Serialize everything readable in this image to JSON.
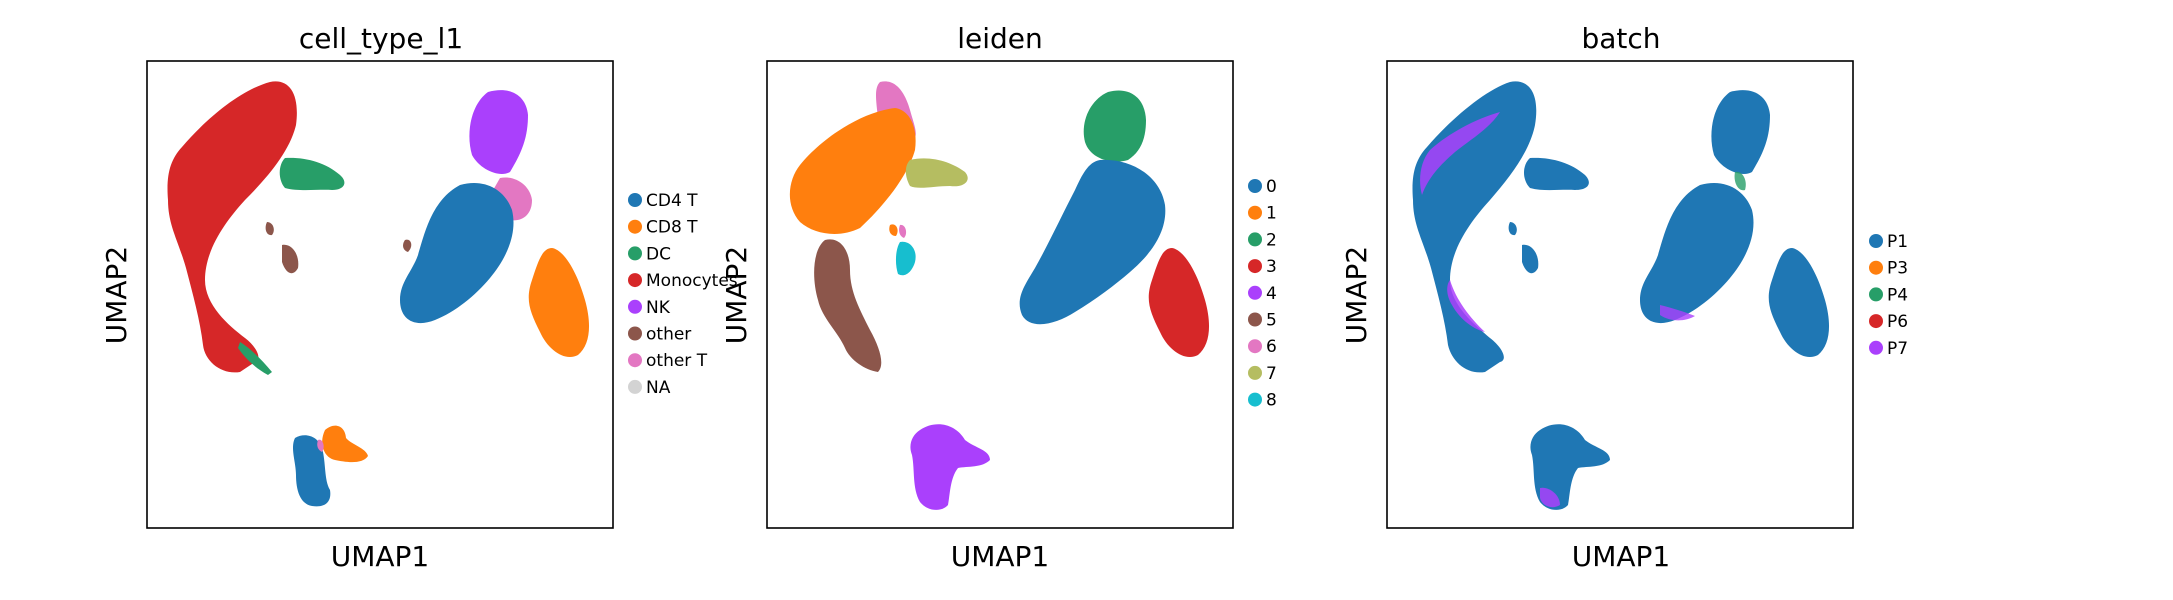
{
  "chart_data": [
    {
      "type": "scatter",
      "title": "cell_type_l1",
      "xlabel": "UMAP1",
      "ylabel": "UMAP2",
      "ticks": "none",
      "legend_position": "right",
      "legend": [
        {
          "label": "CD4 T",
          "color": "#1f77b4"
        },
        {
          "label": "CD8 T",
          "color": "#ff7f0e"
        },
        {
          "label": "DC",
          "color": "#279e68"
        },
        {
          "label": "Monocytes",
          "color": "#d62728"
        },
        {
          "label": "NK",
          "color": "#aa40fc"
        },
        {
          "label": "other",
          "color": "#8c564b"
        },
        {
          "label": "other T",
          "color": "#e377c2"
        },
        {
          "label": "NA",
          "color": "#d3d3d3"
        }
      ]
    },
    {
      "type": "scatter",
      "title": "leiden",
      "xlabel": "UMAP1",
      "ylabel": "UMAP2",
      "ticks": "none",
      "legend_position": "right",
      "legend": [
        {
          "label": "0",
          "color": "#1f77b4"
        },
        {
          "label": "1",
          "color": "#ff7f0e"
        },
        {
          "label": "2",
          "color": "#279e68"
        },
        {
          "label": "3",
          "color": "#d62728"
        },
        {
          "label": "4",
          "color": "#aa40fc"
        },
        {
          "label": "5",
          "color": "#8c564b"
        },
        {
          "label": "6",
          "color": "#e377c2"
        },
        {
          "label": "7",
          "color": "#b5bd61"
        },
        {
          "label": "8",
          "color": "#17becf"
        }
      ]
    },
    {
      "type": "scatter",
      "title": "batch",
      "xlabel": "UMAP1",
      "ylabel": "UMAP2",
      "ticks": "none",
      "legend_position": "right",
      "legend": [
        {
          "label": "P1",
          "color": "#1f77b4"
        },
        {
          "label": "P3",
          "color": "#ff7f0e"
        },
        {
          "label": "P4",
          "color": "#279e68"
        },
        {
          "label": "P6",
          "color": "#d62728"
        },
        {
          "label": "P7",
          "color": "#aa40fc"
        }
      ]
    }
  ]
}
